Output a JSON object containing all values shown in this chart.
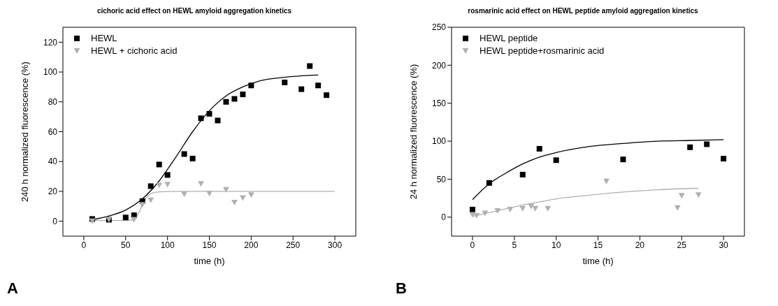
{
  "chart_data": [
    {
      "type": "scatter",
      "title": "cichoric acid effect on HEWL amyloid aggregation kinetics",
      "xlabel": "time (h)",
      "ylabel": "240 h normalized fluorescence (%)",
      "xlim": [
        -25,
        325
      ],
      "xticks": [
        0,
        50,
        100,
        150,
        200,
        250,
        300
      ],
      "ylim": [
        -10,
        130
      ],
      "yticks": [
        0,
        20,
        40,
        60,
        80,
        100,
        120
      ],
      "grid": false,
      "legend": "top left",
      "annotations": [
        "A"
      ],
      "series": [
        {
          "name": "HEWL",
          "color": "#000000",
          "marker": "square",
          "x": [
            10,
            30,
            50,
            60,
            70,
            80,
            90,
            100,
            120,
            130,
            140,
            150,
            160,
            170,
            180,
            190,
            200,
            240,
            260,
            270,
            280,
            290
          ],
          "values": [
            1.5,
            1,
            2.5,
            4,
            13.5,
            23.5,
            38,
            31,
            45,
            42,
            69,
            72,
            67.5,
            80,
            82,
            85,
            91,
            93,
            88.5,
            104,
            91,
            84.5
          ]
        },
        {
          "name": "HEWL + cichoric acid",
          "color": "#b0b0b0",
          "marker": "triangle",
          "x": [
            10,
            30,
            60,
            70,
            80,
            90,
            100,
            120,
            140,
            150,
            170,
            180,
            190,
            200
          ],
          "values": [
            0,
            1,
            1,
            11,
            14,
            24,
            24.5,
            18,
            25,
            18.5,
            21,
            12.5,
            15.5,
            17.5
          ]
        },
        {
          "type": "line",
          "color": "#000000",
          "x": [
            10,
            30,
            50,
            70,
            90,
            110,
            130,
            150,
            170,
            190,
            210,
            240,
            280
          ],
          "values": [
            1,
            3.5,
            7.5,
            15,
            27,
            43,
            60,
            74,
            84,
            90,
            94,
            96.5,
            98
          ]
        },
        {
          "type": "line",
          "color": "#b0b0b0",
          "x": [
            10,
            50,
            60,
            65,
            70,
            75,
            80,
            90,
            120,
            300
          ],
          "values": [
            0.5,
            0.5,
            1,
            5,
            11,
            16,
            18.5,
            19.7,
            20,
            20
          ]
        }
      ]
    },
    {
      "type": "scatter",
      "title": "rosmarinic acid effect on HEWL peptide amyloid aggregation kinetics",
      "xlabel": "time (h)",
      "ylabel": "24 h normalized fluorescence (%)",
      "xlim": [
        -2.5,
        32.5
      ],
      "xticks": [
        0,
        5,
        10,
        15,
        20,
        25,
        30
      ],
      "ylim": [
        -25,
        250
      ],
      "yticks": [
        0,
        50,
        100,
        150,
        200,
        250
      ],
      "grid": false,
      "legend": "top left",
      "annotations": [
        "B"
      ],
      "series": [
        {
          "name": "HEWL peptide",
          "color": "#000000",
          "marker": "square",
          "x": [
            0,
            2,
            6,
            8,
            10,
            18,
            26,
            28,
            30
          ],
          "values": [
            10,
            45,
            56,
            90,
            75,
            76,
            92,
            96,
            77
          ]
        },
        {
          "name": "HEWL peptide+rosmarinic acid",
          "color": "#b0b0b0",
          "marker": "triangle",
          "x": [
            0,
            0.5,
            1.5,
            3,
            4.5,
            6,
            7,
            7.5,
            9,
            16,
            24.5,
            25,
            27
          ],
          "values": [
            3,
            2,
            5,
            8,
            10,
            11,
            14,
            11,
            11,
            47,
            12,
            28,
            29
          ]
        },
        {
          "type": "line",
          "color": "#000000",
          "x": [
            0,
            2,
            4,
            6,
            8,
            10,
            14,
            18,
            22,
            26,
            30
          ],
          "values": [
            23,
            44,
            58,
            70,
            79,
            85,
            93,
            97,
            100,
            101,
            102
          ]
        },
        {
          "type": "line",
          "color": "#b0b0b0",
          "x": [
            0,
            2,
            4,
            6,
            8,
            10,
            14,
            18,
            22,
            27
          ],
          "values": [
            1,
            6,
            11,
            16,
            20,
            24,
            29,
            33,
            36,
            38
          ]
        }
      ]
    }
  ]
}
